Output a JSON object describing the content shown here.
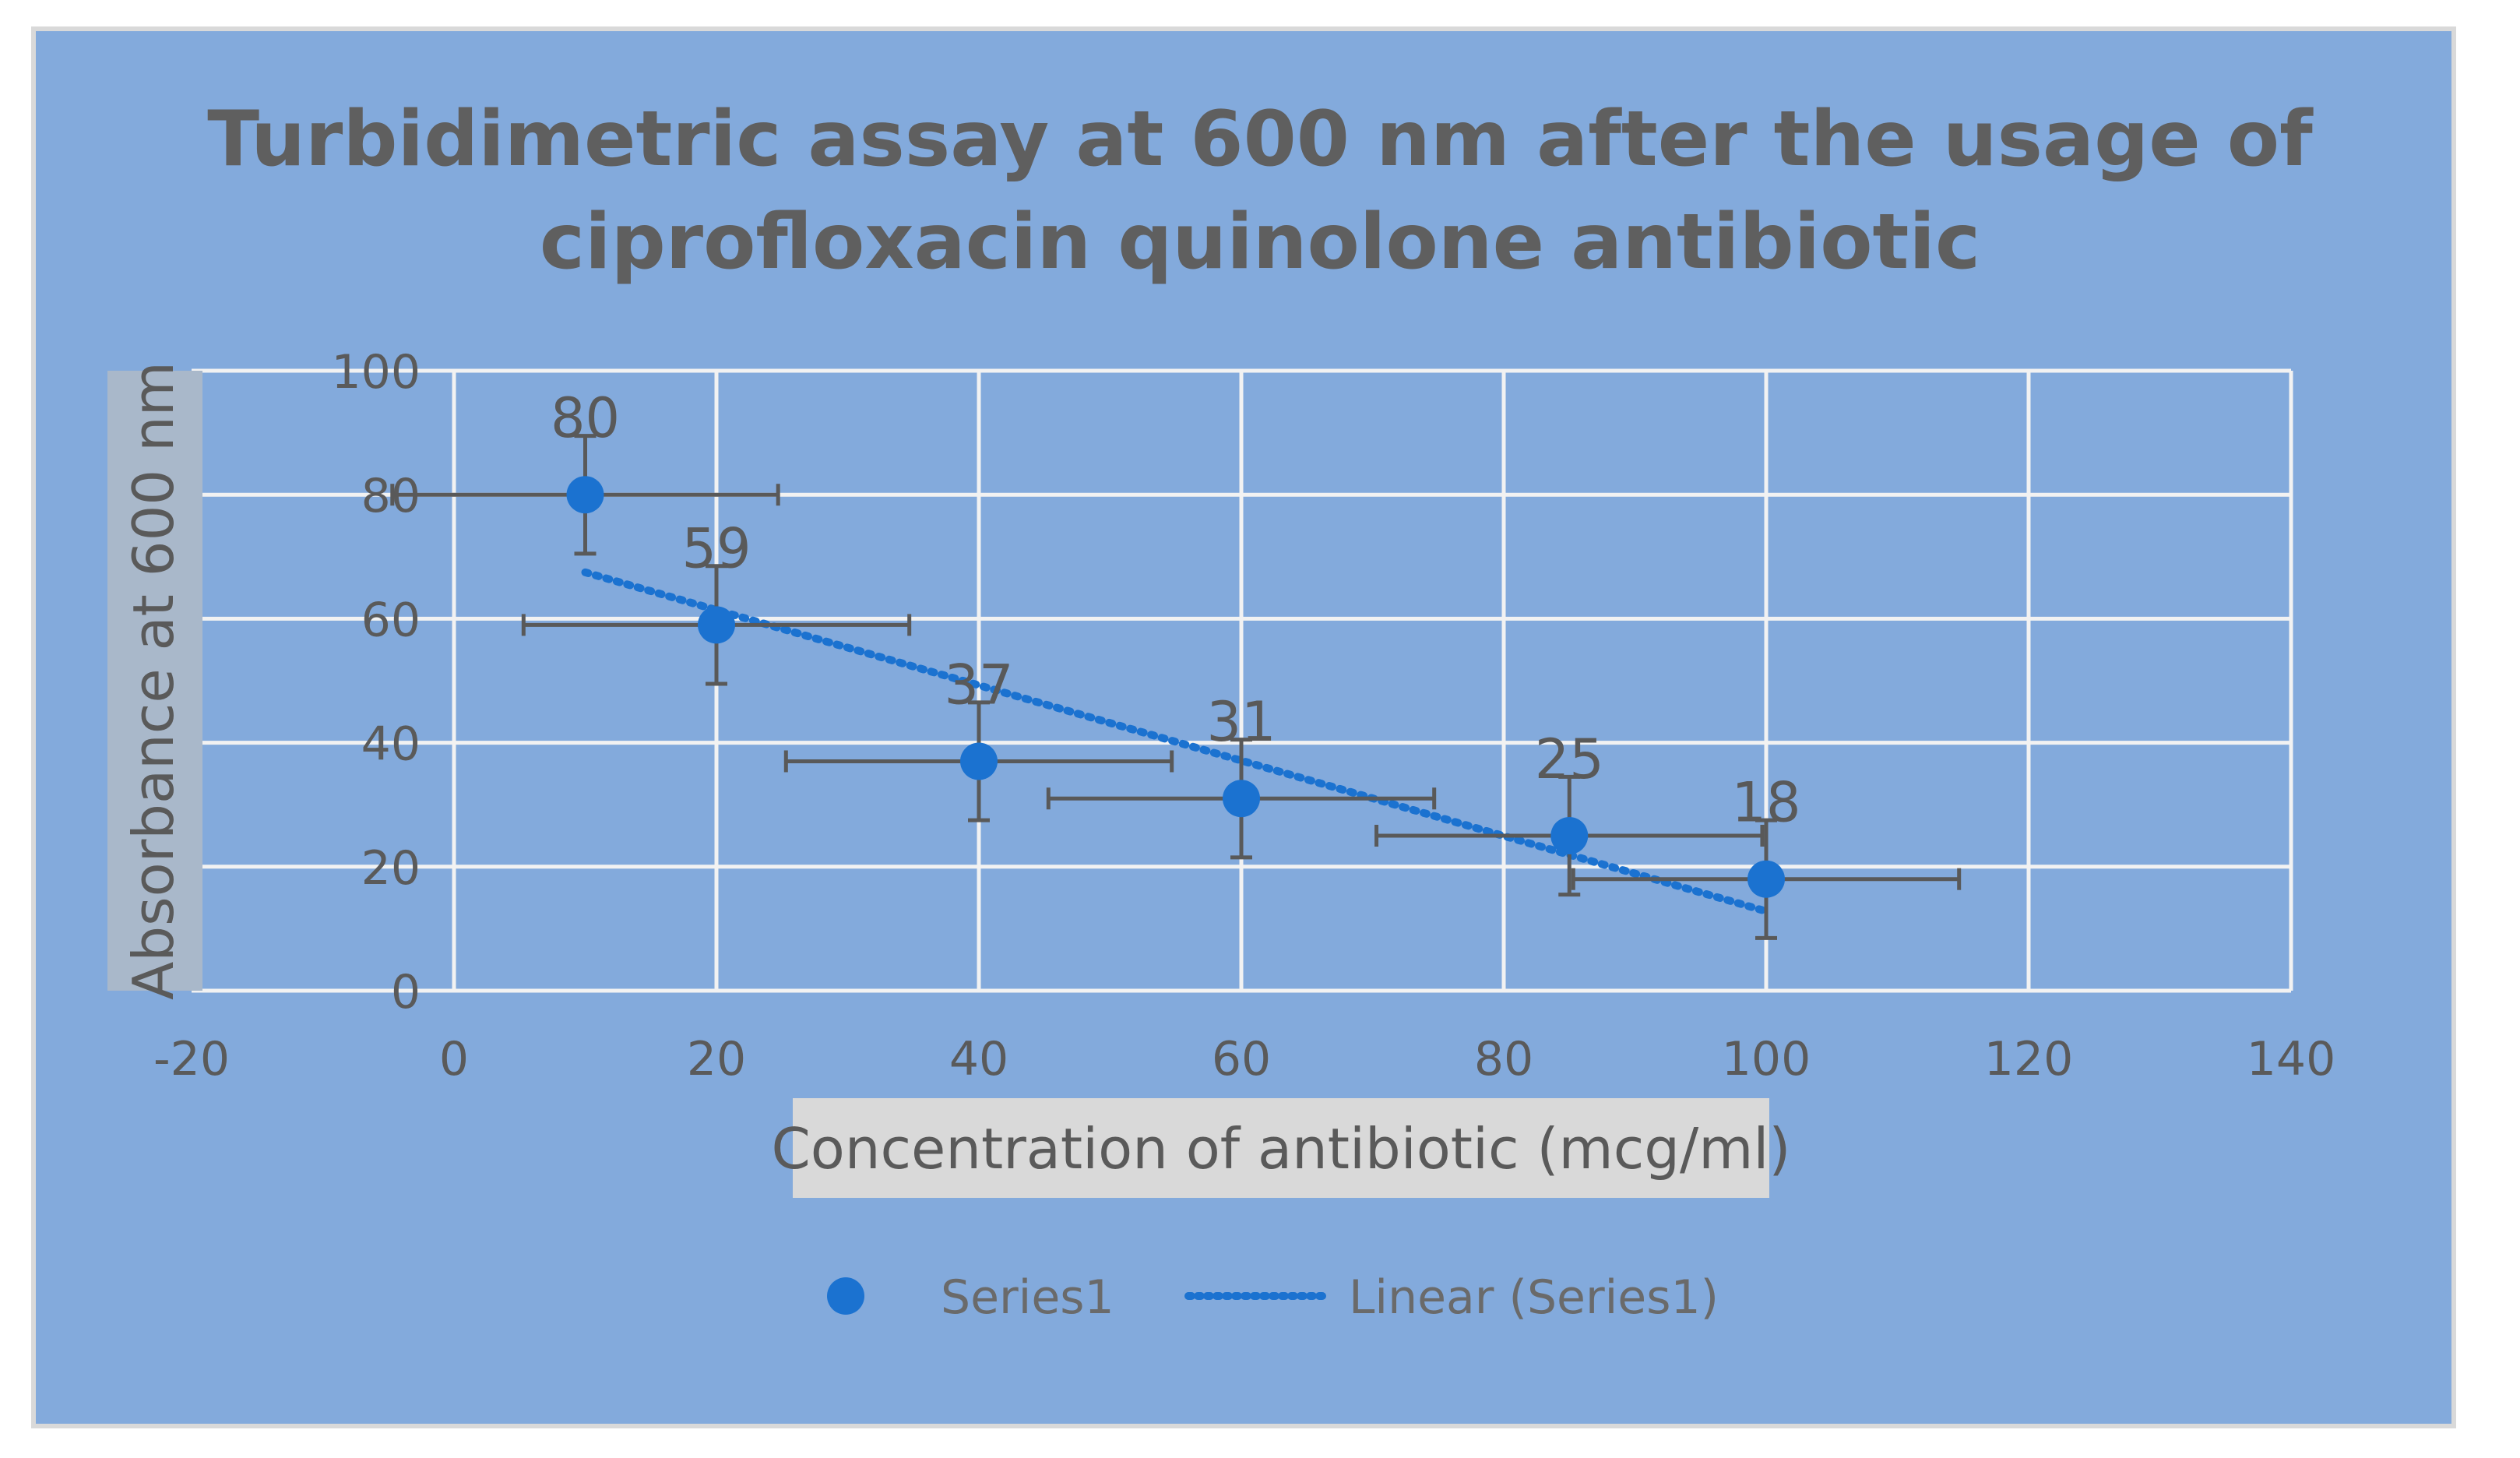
{
  "colors": {
    "background": "#83aadc",
    "gridline": "#f2f2f2",
    "marker": "#1b72d0",
    "trendline": "#1b72d0",
    "error_bar": "#595959",
    "text": "#5a5a5a",
    "axis_title_box": "#d9d9d9",
    "y_title_box": "#a9b8ca"
  },
  "chart_data": {
    "type": "scatter",
    "title_lines": [
      "Turbidimetric assay at 600 nm after the usage of",
      "ciprofloxacin quinolone antibiotic"
    ],
    "xlabel": "Concentration of antibiotic (mcg/ml)",
    "ylabel": "Absorbance at 600 nm",
    "xlim": [
      -20,
      140
    ],
    "ylim": [
      0,
      100
    ],
    "x_ticks": [
      -20,
      0,
      20,
      40,
      60,
      80,
      100,
      120,
      140
    ],
    "x_tick_labels": [
      "-20",
      "0",
      "20",
      "40",
      "60",
      "80",
      "100",
      "120",
      "140"
    ],
    "y_ticks": [
      0,
      20,
      40,
      60,
      80,
      100
    ],
    "y_tick_labels": [
      "0",
      "20",
      "40",
      "60",
      "80",
      "100"
    ],
    "grid": true,
    "legend_position": "bottom",
    "series": [
      {
        "name": "Series1",
        "x": [
          10,
          20,
          40,
          60,
          85,
          100
        ],
        "y": [
          80,
          59,
          37,
          31,
          25,
          18
        ],
        "data_labels": [
          "80",
          "59",
          "37",
          "31",
          "25",
          "18"
        ],
        "x_error": 14.7,
        "y_error": 9.5
      }
    ],
    "trendline": {
      "name": "Linear (Series1)",
      "type": "linear",
      "x_start": 10,
      "x_end": 100
    }
  }
}
